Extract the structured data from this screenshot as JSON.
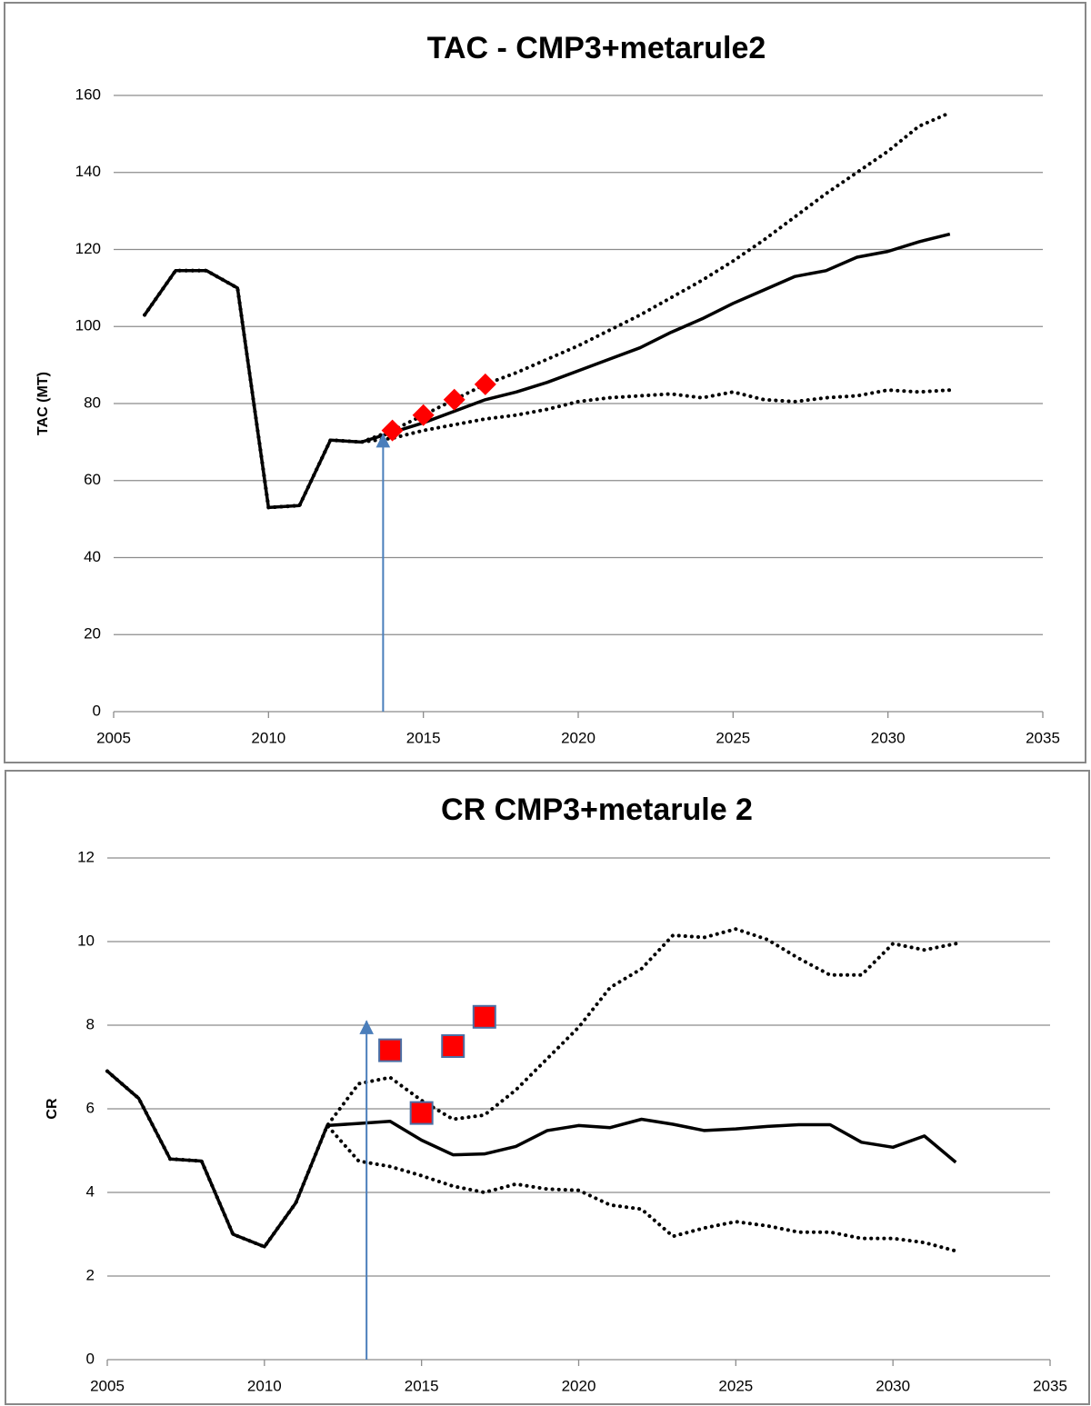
{
  "chart_data": [
    {
      "type": "line",
      "title": "TAC - CMP3+metarule2",
      "y_label": "TAC (MT)",
      "x": [
        2006,
        2007,
        2008,
        2009,
        2010,
        2011,
        2012,
        2013,
        2014,
        2015,
        2016,
        2017,
        2018,
        2019,
        2020,
        2021,
        2022,
        2023,
        2024,
        2025,
        2026,
        2027,
        2028,
        2029,
        2030,
        2031,
        2032
      ],
      "series": [
        {
          "color": "#000000",
          "style": "solid",
          "values": [
            103,
            114.5,
            114.5,
            110,
            53,
            53.5,
            70.5,
            70,
            72.5,
            75,
            78,
            81,
            83,
            85.5,
            88.5,
            91.5,
            94.5,
            98.5,
            102,
            106,
            109.5,
            113,
            114.5,
            118,
            119.5,
            122,
            124
          ]
        },
        {
          "color": "#000000",
          "style": "dotted",
          "values": [
            103,
            114.5,
            114.5,
            110,
            53,
            53.5,
            70.5,
            70,
            73,
            77,
            81,
            85,
            88,
            91.5,
            95,
            99,
            103,
            107.5,
            112,
            117,
            122.5,
            128.5,
            134.5,
            140,
            145.5,
            152,
            155.5
          ]
        },
        {
          "color": "#000000",
          "style": "dotted",
          "values": [
            103,
            114.5,
            114.5,
            110,
            53,
            53.5,
            70.5,
            70,
            71,
            73,
            74.5,
            76,
            77,
            78.5,
            80.5,
            81.5,
            82,
            82.5,
            81.5,
            83,
            81,
            80.5,
            81.5,
            82,
            83.5,
            83,
            83.5
          ]
        }
      ],
      "markers": {
        "shape": "diamond",
        "color": "#ff0000",
        "x": [
          2014,
          2015,
          2016,
          2017
        ],
        "values": [
          73,
          77,
          81,
          85
        ]
      },
      "arrow": {
        "color": "#4a7ebb",
        "x": 2013.7,
        "from": 0,
        "to": 72
      },
      "xlim": [
        2005,
        2035
      ],
      "xticks": [
        2005,
        2010,
        2015,
        2020,
        2025,
        2030,
        2035
      ],
      "ylim": [
        0,
        160
      ],
      "yticks": [
        0,
        20,
        40,
        60,
        80,
        100,
        120,
        140,
        160
      ],
      "grid": true
    },
    {
      "type": "line",
      "title": "CR CMP3+metarule 2",
      "y_label": "CR",
      "x": [
        2005,
        2006,
        2007,
        2008,
        2009,
        2010,
        2011,
        2012,
        2013,
        2014,
        2015,
        2016,
        2017,
        2018,
        2019,
        2020,
        2021,
        2022,
        2023,
        2024,
        2025,
        2026,
        2027,
        2028,
        2029,
        2030,
        2031,
        2032
      ],
      "series": [
        {
          "color": "#000000",
          "style": "solid",
          "values": [
            6.9,
            6.25,
            4.8,
            4.75,
            3.0,
            2.7,
            3.75,
            5.6,
            5.65,
            5.7,
            5.25,
            4.9,
            4.92,
            5.1,
            5.48,
            5.6,
            5.55,
            5.75,
            5.63,
            5.48,
            5.52,
            5.58,
            5.62,
            5.62,
            5.2,
            5.08,
            5.35,
            4.72
          ]
        },
        {
          "color": "#000000",
          "style": "dotted",
          "values": [
            6.9,
            6.25,
            4.8,
            4.75,
            3.0,
            2.7,
            3.75,
            5.6,
            6.6,
            6.75,
            6.2,
            5.75,
            5.85,
            6.45,
            7.2,
            7.95,
            8.9,
            9.35,
            10.15,
            10.1,
            10.3,
            10.05,
            9.6,
            9.2,
            9.2,
            9.95,
            9.8,
            9.95
          ]
        },
        {
          "color": "#000000",
          "style": "dotted",
          "values": [
            6.9,
            6.25,
            4.8,
            4.75,
            3.0,
            2.7,
            3.75,
            5.6,
            4.75,
            4.62,
            4.4,
            4.15,
            4.0,
            4.2,
            4.08,
            4.05,
            3.7,
            3.6,
            2.95,
            3.15,
            3.3,
            3.2,
            3.05,
            3.05,
            2.9,
            2.9,
            2.8,
            2.6
          ]
        }
      ],
      "markers": {
        "shape": "square",
        "color": "#ff0000",
        "x": [
          2014,
          2015,
          2016,
          2017
        ],
        "values": [
          7.4,
          5.9,
          7.5,
          8.2
        ]
      },
      "arrow": {
        "color": "#4a7ebb",
        "x": 2013.25,
        "from": 0,
        "to": 8.1
      },
      "xlim": [
        2005,
        2035
      ],
      "xticks": [
        2005,
        2010,
        2015,
        2020,
        2025,
        2030,
        2035
      ],
      "ylim": [
        0,
        12
      ],
      "yticks": [
        0,
        2,
        4,
        6,
        8,
        10,
        12
      ],
      "grid": true
    }
  ]
}
